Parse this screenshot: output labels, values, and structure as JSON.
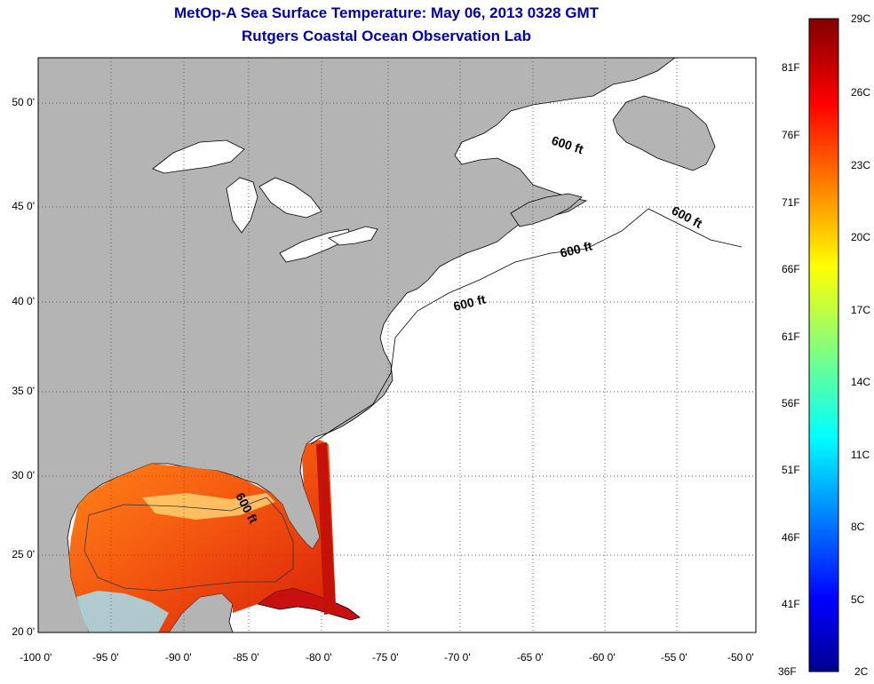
{
  "title": "MetOp-A Sea Surface Temperature:  May 06, 2013 0328 GMT",
  "subtitle": "Rutgers Coastal Ocean Observation Lab",
  "map": {
    "lon_range": [
      -100,
      -50
    ],
    "lat_range": [
      20,
      52
    ],
    "grid": true,
    "land_color": "#b4b4b4",
    "ocean_color": "#ffffff",
    "x_ticks": [
      "-100 0'",
      "-95 0'",
      "-90 0'",
      "-85 0'",
      "-80 0'",
      "-75 0'",
      "-70 0'",
      "-65 0'",
      "-60 0'",
      "-55 0'",
      "-50 0'"
    ],
    "y_ticks": [
      "50 0'",
      "45 0'",
      "40 0'",
      "35 0'",
      "30 0'",
      "25 0'",
      "20 0'"
    ],
    "isobath_labels": [
      "600 ft",
      "600 ft",
      "600 ft",
      "600 ft",
      "600 ft"
    ]
  },
  "colorbar": {
    "celsius": [
      "29C",
      "26C",
      "23C",
      "20C",
      "17C",
      "14C",
      "11C",
      "8C",
      "5C",
      "2C"
    ],
    "fahrenheit": [
      "81F",
      "76F",
      "71F",
      "66F",
      "61F",
      "56F",
      "51F",
      "46F",
      "41F",
      "36F"
    ],
    "range_c": [
      2,
      29
    ],
    "range_f": [
      36,
      84
    ],
    "colormap": "jet"
  }
}
